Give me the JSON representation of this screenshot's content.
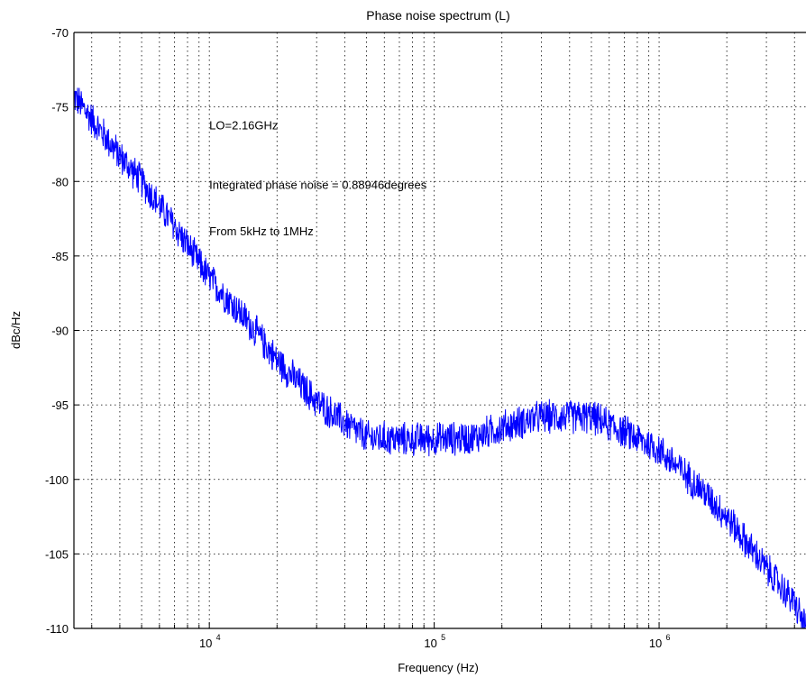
{
  "chart_data": {
    "type": "line",
    "title": "Phase noise spectrum (L)",
    "xlabel": "Frequency (Hz)",
    "ylabel": "dBc/Hz",
    "xscale": "log",
    "xlim": [
      2500,
      4500000
    ],
    "ylim": [
      -110,
      -70
    ],
    "grid": true,
    "grid_style": "dotted",
    "yticks": [
      -70,
      -75,
      -80,
      -85,
      -90,
      -95,
      -100,
      -105,
      -110
    ],
    "ytick_labels": [
      "-70",
      "-75",
      "-80",
      "-85",
      "-90",
      "-95",
      "-100",
      "-105",
      "-110"
    ],
    "xticks": [
      10000,
      100000,
      1000000
    ],
    "xtick_labels": [
      {
        "base": "10",
        "exp": "4"
      },
      {
        "base": "10",
        "exp": "5"
      },
      {
        "base": "10",
        "exp": "6"
      }
    ],
    "annotations": [
      {
        "text": "LO=2.16GHz",
        "x": 10000,
        "y": -76.2
      },
      {
        "text": "Integrated phase noise = 0.88946degrees",
        "x": 10000,
        "y": -80.2
      },
      {
        "text": "From 5kHz to 1MHz",
        "x": 10000,
        "y": -83.3
      }
    ],
    "series": [
      {
        "color": "#0000ff",
        "noise_db": 0.8,
        "x": [
          2500,
          3000,
          4000,
          5000,
          7000,
          10000,
          15000,
          20000,
          30000,
          40000,
          50000,
          70000,
          100000,
          150000,
          200000,
          300000,
          500000,
          700000,
          1000000,
          1500000,
          2000000,
          3000000,
          4000000,
          4500000
        ],
        "y": [
          -74.3,
          -75.8,
          -78.3,
          -80.0,
          -83.0,
          -86.5,
          -89.5,
          -92.0,
          -94.8,
          -96.2,
          -97.2,
          -97.3,
          -97.3,
          -97.2,
          -96.5,
          -95.8,
          -95.8,
          -96.8,
          -98.0,
          -100.5,
          -102.5,
          -106.0,
          -108.3,
          -110.0
        ]
      }
    ]
  }
}
